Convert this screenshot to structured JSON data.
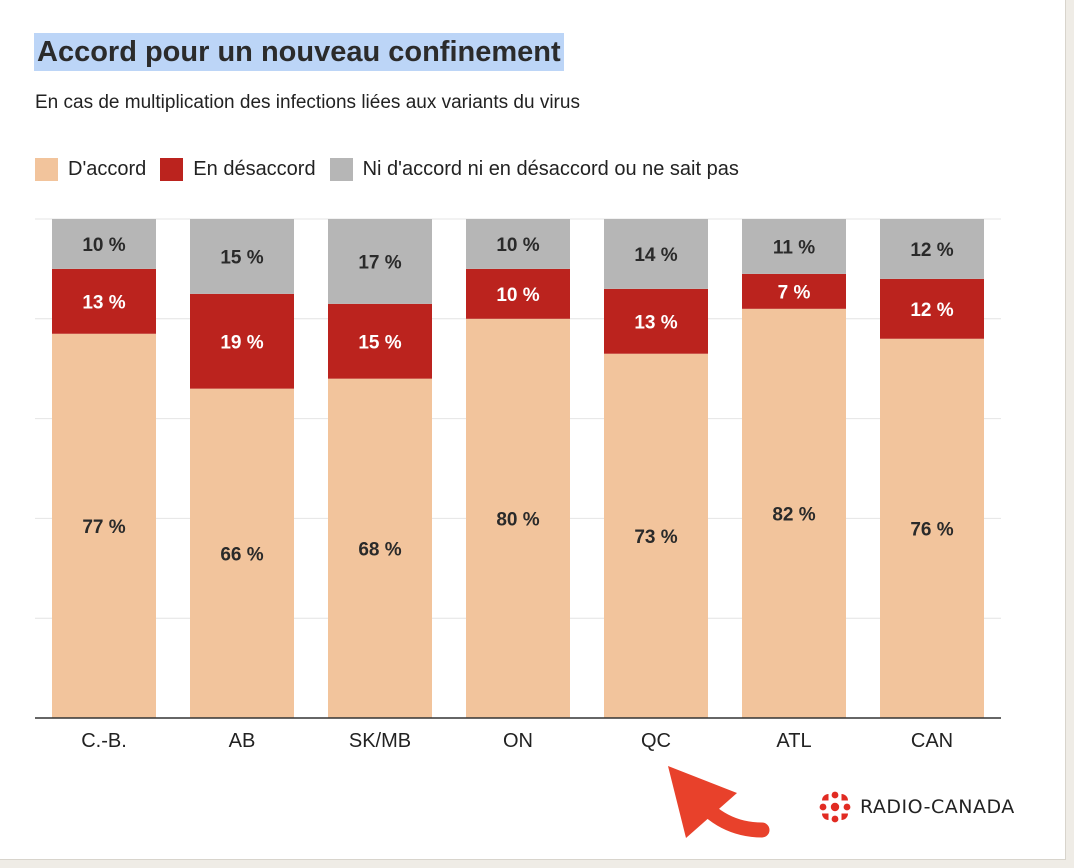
{
  "title": "Accord pour un nouveau confinement",
  "subtitle": "En cas de multiplication des infections liées aux variants du virus",
  "brand": "RADIO-CANADA",
  "chart_data": {
    "type": "bar",
    "stacked": true,
    "categories": [
      "C.-B.",
      "AB",
      "SK/MB",
      "ON",
      "QC",
      "ATL",
      "CAN"
    ],
    "series": [
      {
        "name": "D'accord",
        "color": "#f2c49c",
        "values": [
          77,
          66,
          68,
          80,
          73,
          82,
          76
        ],
        "labels": [
          "77 %",
          "66 %",
          "68 %",
          "80 %",
          "73 %",
          "82 %",
          "76 %"
        ]
      },
      {
        "name": "En désaccord",
        "color": "#bb231e",
        "values": [
          13,
          19,
          15,
          10,
          13,
          7,
          12
        ],
        "labels": [
          "13 %",
          "19 %",
          "15 %",
          "10 %",
          "13 %",
          "7 %",
          "12 %"
        ]
      },
      {
        "name": "Ni d'accord ni en désaccord ou ne sait pas",
        "color": "#b6b6b6",
        "values": [
          10,
          15,
          17,
          10,
          14,
          11,
          12
        ],
        "labels": [
          "10 %",
          "15 %",
          "17 %",
          "10 %",
          "14 %",
          "11 %",
          "12 %"
        ]
      }
    ],
    "ylim": [
      0,
      100
    ],
    "grid": true,
    "legend_position": "top-left"
  },
  "annotation": {
    "shape": "curved-arrow",
    "color": "#e8412b"
  }
}
